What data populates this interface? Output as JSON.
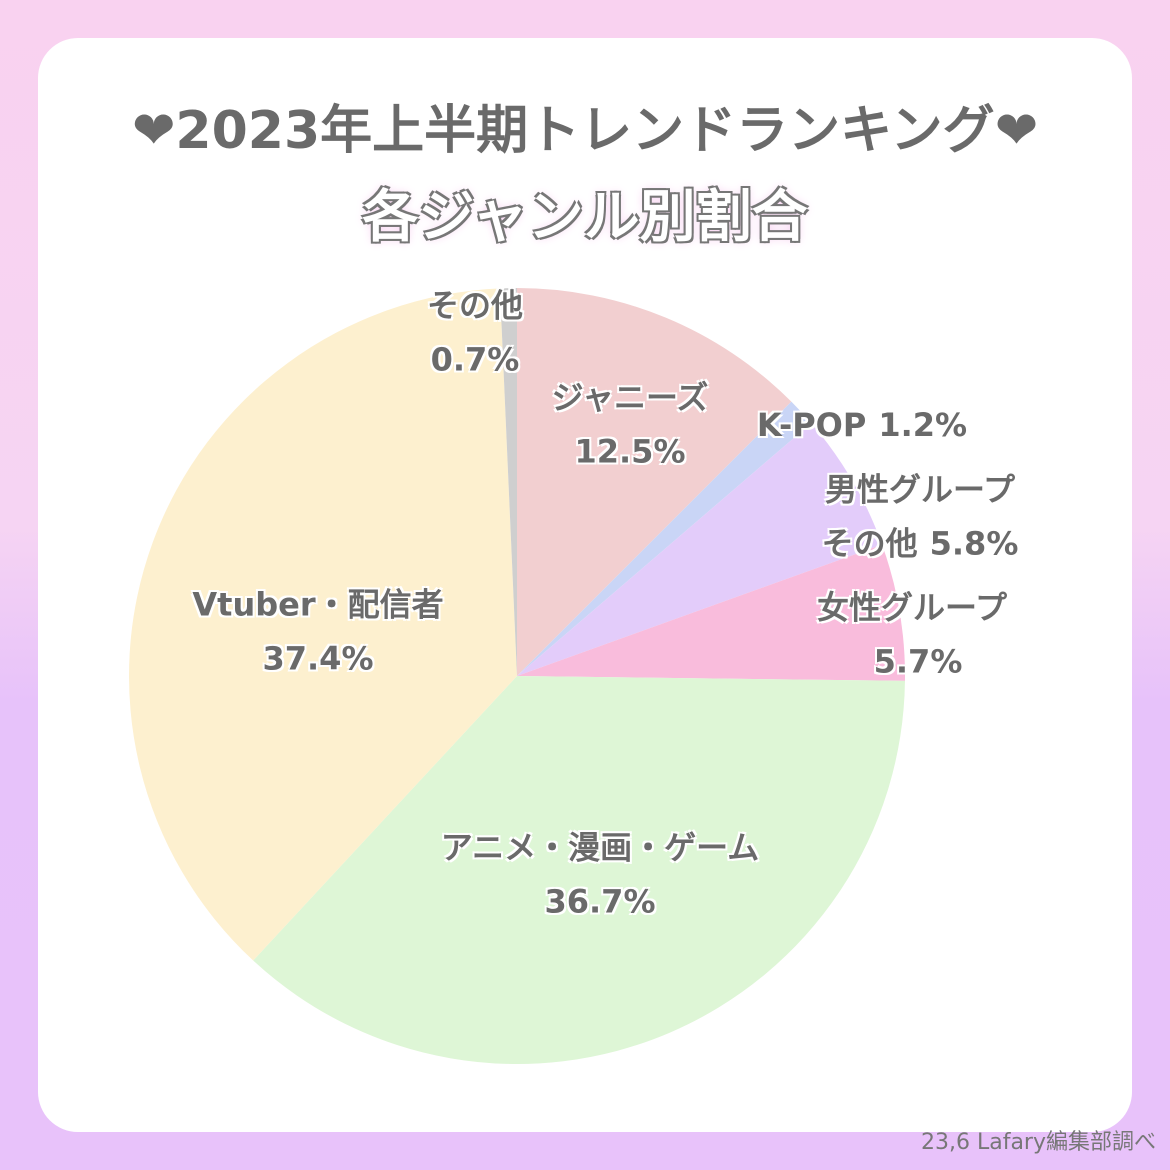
{
  "chart_data": {
    "type": "pie",
    "title": "❤2023年上半期トレンドランキング❤",
    "subtitle": "各ジャンル別割合",
    "categories": [
      "ジャニーズ",
      "K-POP",
      "男性グループ\nその他",
      "女性グループ",
      "アニメ・漫画・ゲーム",
      "Vtuber・配信者",
      "その他"
    ],
    "values": [
      12.5,
      1.2,
      5.8,
      5.7,
      36.7,
      37.4,
      0.7
    ],
    "value_labels": [
      "12.5%",
      "1.2%",
      "5.8%",
      "5.7%",
      "36.7%",
      "37.4%",
      "0.7%"
    ],
    "colors": [
      "#f2cfd0",
      "#c9d5f6",
      "#e3ccfa",
      "#f9bcdc",
      "#def6d6",
      "#fdf0cf",
      "#cfcfcf"
    ],
    "source": "23,6 Lafary編集部調べ"
  }
}
